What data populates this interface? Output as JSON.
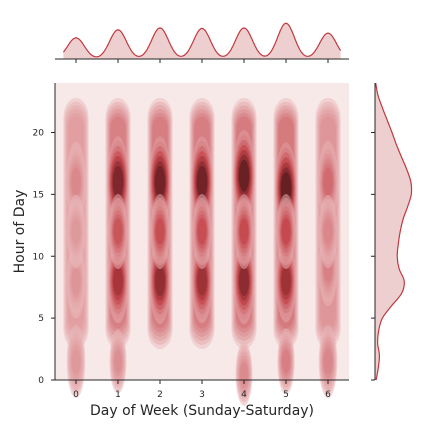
{
  "chart_data": {
    "type": "heatmap",
    "subtype": "joint-kde",
    "xlabel": "Day of Week (Sunday-Saturday)",
    "ylabel": "Hour of Day",
    "xlim": [
      -0.5,
      6.5
    ],
    "ylim": [
      0,
      24
    ],
    "x_ticks": [
      0,
      1,
      2,
      3,
      4,
      5,
      6
    ],
    "x_tick_labels": [
      "0",
      "1",
      "2",
      "3",
      "4",
      "5",
      "6"
    ],
    "y_ticks": [
      0,
      5,
      10,
      15,
      20
    ],
    "y_tick_labels": [
      "0",
      "5",
      "10",
      "15",
      "20"
    ],
    "grid": false,
    "colors": {
      "background": "#f8e9e9",
      "light": "#ecc0c2",
      "dark": "#2b0d0f",
      "marginal_line": "#c0393f",
      "marginal_fill": "#e8c3c4"
    },
    "x_marginal": {
      "peaks": [
        {
          "x": 0,
          "density": 0.45
        },
        {
          "x": 1,
          "density": 0.62
        },
        {
          "x": 2,
          "density": 0.66
        },
        {
          "x": 3,
          "density": 0.65
        },
        {
          "x": 4,
          "density": 0.66
        },
        {
          "x": 5,
          "density": 0.76
        },
        {
          "x": 6,
          "density": 0.55
        }
      ]
    },
    "y_marginal": {
      "points": [
        {
          "hour": 0,
          "density": 0.03
        },
        {
          "hour": 1,
          "density": 0.09
        },
        {
          "hour": 2,
          "density": 0.12
        },
        {
          "hour": 3,
          "density": 0.07
        },
        {
          "hour": 4,
          "density": 0.1
        },
        {
          "hour": 5,
          "density": 0.2
        },
        {
          "hour": 6,
          "density": 0.45
        },
        {
          "hour": 7,
          "density": 0.72
        },
        {
          "hour": 8,
          "density": 0.79
        },
        {
          "hour": 9,
          "density": 0.65
        },
        {
          "hour": 10,
          "density": 0.6
        },
        {
          "hour": 11,
          "density": 0.63
        },
        {
          "hour": 12,
          "density": 0.68
        },
        {
          "hour": 13,
          "density": 0.76
        },
        {
          "hour": 14,
          "density": 0.88
        },
        {
          "hour": 15,
          "density": 0.98
        },
        {
          "hour": 16,
          "density": 0.97
        },
        {
          "hour": 17,
          "density": 0.86
        },
        {
          "hour": 18,
          "density": 0.72
        },
        {
          "hour": 19,
          "density": 0.58
        },
        {
          "hour": 20,
          "density": 0.46
        },
        {
          "hour": 21,
          "density": 0.33
        },
        {
          "hour": 22,
          "density": 0.2
        },
        {
          "hour": 23,
          "density": 0.08
        },
        {
          "hour": 24,
          "density": 0.02
        }
      ]
    },
    "density_columns": [
      {
        "day": 0,
        "weight": 0.35,
        "spread": 0.12,
        "modes": [
          {
            "hour": 16,
            "weight": 0.7
          },
          {
            "hour": 8,
            "weight": 0.55
          },
          {
            "hour": 12,
            "weight": 0.5
          },
          {
            "hour": 1.5,
            "weight": 0.5
          }
        ]
      },
      {
        "day": 1,
        "weight": 0.85,
        "spread": 0.12,
        "modes": [
          {
            "hour": 16,
            "weight": 1.0
          },
          {
            "hour": 8,
            "weight": 0.8
          },
          {
            "hour": 12,
            "weight": 0.55
          },
          {
            "hour": 1.5,
            "weight": 0.25
          }
        ]
      },
      {
        "day": 2,
        "weight": 0.9,
        "spread": 0.12,
        "modes": [
          {
            "hour": 16,
            "weight": 1.0
          },
          {
            "hour": 8,
            "weight": 0.85
          },
          {
            "hour": 12,
            "weight": 0.55
          }
        ]
      },
      {
        "day": 3,
        "weight": 0.9,
        "spread": 0.12,
        "modes": [
          {
            "hour": 16,
            "weight": 1.0
          },
          {
            "hour": 8,
            "weight": 0.8
          },
          {
            "hour": 12,
            "weight": 0.55
          }
        ]
      },
      {
        "day": 4,
        "weight": 0.93,
        "spread": 0.12,
        "modes": [
          {
            "hour": 16.5,
            "weight": 1.0
          },
          {
            "hour": 8,
            "weight": 0.85
          },
          {
            "hour": 12,
            "weight": 0.55
          },
          {
            "hour": 0.5,
            "weight": 0.25
          }
        ]
      },
      {
        "day": 5,
        "weight": 0.95,
        "spread": 0.12,
        "modes": [
          {
            "hour": 15.5,
            "weight": 1.0
          },
          {
            "hour": 8,
            "weight": 0.75
          },
          {
            "hour": 12,
            "weight": 0.55
          },
          {
            "hour": 1.5,
            "weight": 0.3
          }
        ]
      },
      {
        "day": 6,
        "weight": 0.5,
        "spread": 0.12,
        "modes": [
          {
            "hour": 16,
            "weight": 0.75
          },
          {
            "hour": 9,
            "weight": 0.55
          },
          {
            "hour": 12,
            "weight": 0.5
          },
          {
            "hour": 1.5,
            "weight": 0.5
          }
        ]
      }
    ]
  }
}
